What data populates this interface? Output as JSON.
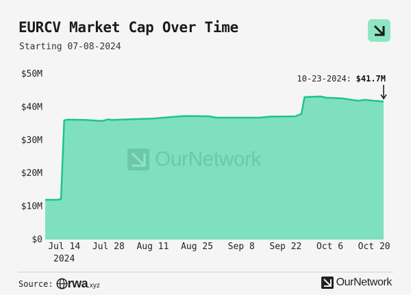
{
  "title": "EURCV Market Cap Over Time",
  "subtitle": "Starting 07-08-2024",
  "source_label": "Source:",
  "source_logo_text": "rwa",
  "source_logo_suffix": ".xyz",
  "brand_name": "OurNetwork",
  "watermark_text": "OurNetwork",
  "colors": {
    "fill": "#7fe0c0",
    "line": "#1ec28e",
    "background": "#f5f5f5",
    "brand": "#8ee5c4"
  },
  "annotation": {
    "date": "10-23-2024:",
    "value": "$41.7M"
  },
  "chart_data": {
    "type": "area",
    "title": "EURCV Market Cap Over Time",
    "subtitle": "Starting 07-08-2024",
    "xlabel": "",
    "ylabel": "",
    "ylim": [
      0,
      50000000
    ],
    "yticks": [
      {
        "value": 0,
        "label": "$0"
      },
      {
        "value": 10000000,
        "label": "$10M"
      },
      {
        "value": 20000000,
        "label": "$20M"
      },
      {
        "value": 30000000,
        "label": "$30M"
      },
      {
        "value": 40000000,
        "label": "$40M"
      },
      {
        "value": 50000000,
        "label": "$50M"
      }
    ],
    "xlim": [
      "2024-07-08",
      "2024-10-23"
    ],
    "xticks": [
      {
        "date": "2024-07-14",
        "label": "Jul 14",
        "sublabel": "2024"
      },
      {
        "date": "2024-07-28",
        "label": "Jul 28"
      },
      {
        "date": "2024-08-11",
        "label": "Aug 11"
      },
      {
        "date": "2024-08-25",
        "label": "Aug 25"
      },
      {
        "date": "2024-09-08",
        "label": "Sep 8"
      },
      {
        "date": "2024-09-22",
        "label": "Sep 22"
      },
      {
        "date": "2024-10-06",
        "label": "Oct 6"
      },
      {
        "date": "2024-10-20",
        "label": "Oct 20"
      }
    ],
    "grid": false,
    "legend": "none",
    "points": [
      {
        "date": "2024-07-08",
        "value": 12000000
      },
      {
        "date": "2024-07-12",
        "value": 12000000
      },
      {
        "date": "2024-07-13",
        "value": 12300000
      },
      {
        "date": "2024-07-13",
        "value": 12300000
      },
      {
        "date": "2024-07-14",
        "value": 36000000
      },
      {
        "date": "2024-07-15",
        "value": 36200000
      },
      {
        "date": "2024-07-21",
        "value": 36100000
      },
      {
        "date": "2024-07-26",
        "value": 35800000
      },
      {
        "date": "2024-07-28",
        "value": 36300000
      },
      {
        "date": "2024-07-29",
        "value": 36100000
      },
      {
        "date": "2024-08-04",
        "value": 36300000
      },
      {
        "date": "2024-08-11",
        "value": 36500000
      },
      {
        "date": "2024-08-17",
        "value": 37000000
      },
      {
        "date": "2024-08-21",
        "value": 37300000
      },
      {
        "date": "2024-08-29",
        "value": 37200000
      },
      {
        "date": "2024-08-31",
        "value": 36800000
      },
      {
        "date": "2024-09-14",
        "value": 36800000
      },
      {
        "date": "2024-09-17",
        "value": 37100000
      },
      {
        "date": "2024-09-25",
        "value": 37200000
      },
      {
        "date": "2024-09-27",
        "value": 37900000
      },
      {
        "date": "2024-09-28",
        "value": 43000000
      },
      {
        "date": "2024-10-03",
        "value": 43200000
      },
      {
        "date": "2024-10-05",
        "value": 42800000
      },
      {
        "date": "2024-10-10",
        "value": 42600000
      },
      {
        "date": "2024-10-15",
        "value": 41900000
      },
      {
        "date": "2024-10-17",
        "value": 42200000
      },
      {
        "date": "2024-10-20",
        "value": 41900000
      },
      {
        "date": "2024-10-23",
        "value": 41700000
      }
    ]
  }
}
